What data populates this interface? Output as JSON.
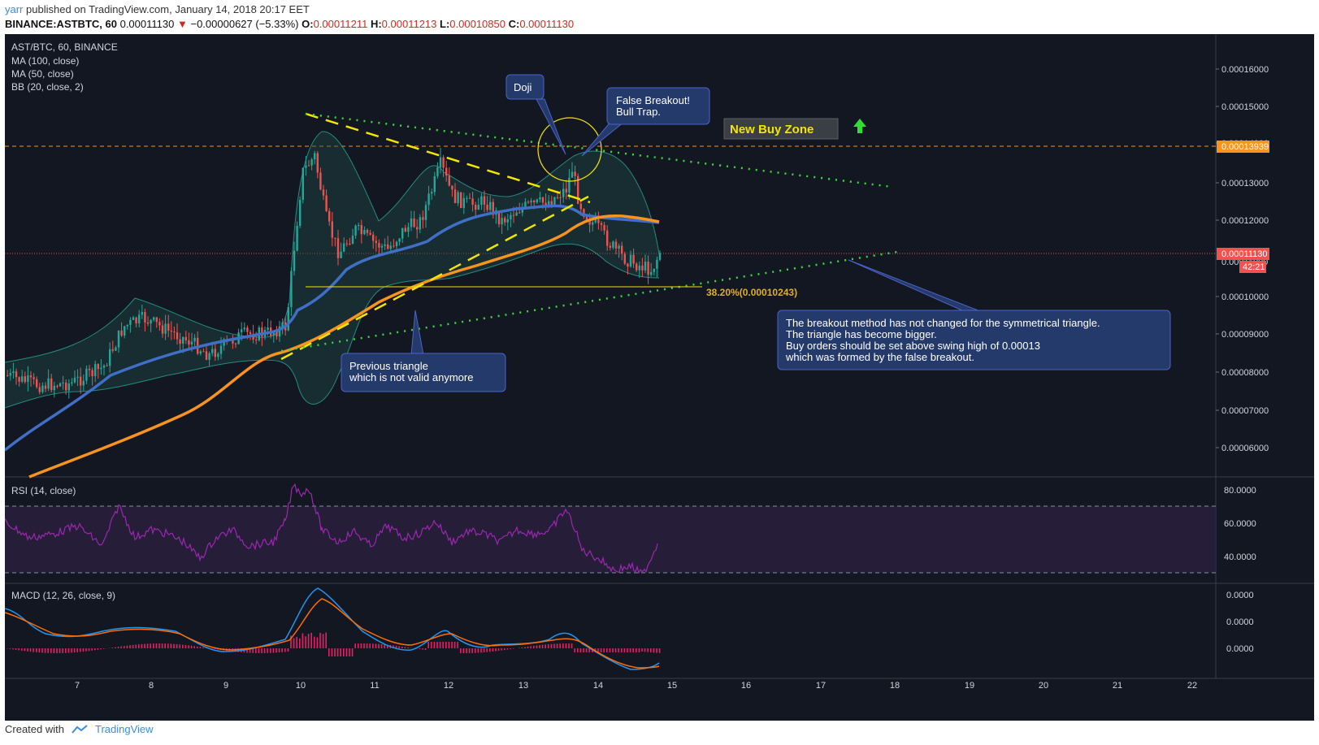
{
  "header": {
    "user": "yarr",
    "published_text": "published on TradingView.com, January 14, 2018 20:17 EET",
    "symbol_line": "BINANCE:ASTBTC, 60",
    "last_price": "0.00011130",
    "change_arrow": "▼",
    "change": "−0.00000627 (−5.33%)",
    "o_label": "O:",
    "o_value": "0.00011211",
    "h_label": "H:",
    "h_value": "0.00011213",
    "l_label": "L:",
    "l_value": "0.00010850",
    "c_label": "C:",
    "c_value": "0.00011130"
  },
  "legend": {
    "pair": "AST/BTC, 60, BINANCE",
    "ma100": "MA (100, close)",
    "ma50": "MA (50, close)",
    "bb": "BB (20, close, 2)",
    "rsi": "RSI (14, close)",
    "macd": "MACD (12, 26, close, 9)"
  },
  "price_axis": {
    "ticks": [
      "0.00016000",
      "0.00015000",
      "0.00014000",
      "0.00013000",
      "0.00012000",
      "0.00011000",
      "0.00010000",
      "0.00009000",
      "0.00008000",
      "0.00007000",
      "0.00006000"
    ],
    "resistance_label": "0.00013939",
    "last_label": "0.00011130",
    "countdown": "42:21"
  },
  "rsi_axis": {
    "ticks": [
      "80.0000",
      "60.0000",
      "40.0000"
    ],
    "upper": 70,
    "lower": 30
  },
  "macd_axis": {
    "ticks": [
      "0.0000",
      "0.0000",
      "0.0000"
    ]
  },
  "time_axis": [
    "7",
    "8",
    "9",
    "10",
    "11",
    "12",
    "13",
    "14",
    "15",
    "16",
    "17",
    "18",
    "19",
    "20",
    "21",
    "22"
  ],
  "annotations": {
    "doji": "Doji",
    "false_breakout_1": "False Breakout!",
    "false_breakout_2": "Bull Trap.",
    "buy_zone": "New Buy Zone",
    "prev_triangle_1": "Previous triangle",
    "prev_triangle_2": "which is not valid anymore",
    "fib": "38.20%(0.00010243)",
    "note_1": "The breakout method has not changed for the symmetrical triangle.",
    "note_2": "The triangle has become bigger.",
    "note_3": "Buy orders should be set above swing high of 0.00013",
    "note_4": "which was formed by the false breakout."
  },
  "footer": {
    "created_with": "Created with",
    "brand": "TradingView"
  },
  "colors": {
    "background": "#131722",
    "up": "#26a69a",
    "down": "#ef5350",
    "ma100": "#f7931e",
    "ma50": "#3f6fc6",
    "rsi": "#9c27b0",
    "macd": "#2196f3",
    "signal": "#ff6d00",
    "trendline_green": "#33dd33",
    "triangle_yellow": "#f2e600",
    "resistance": "#f7931e"
  }
}
